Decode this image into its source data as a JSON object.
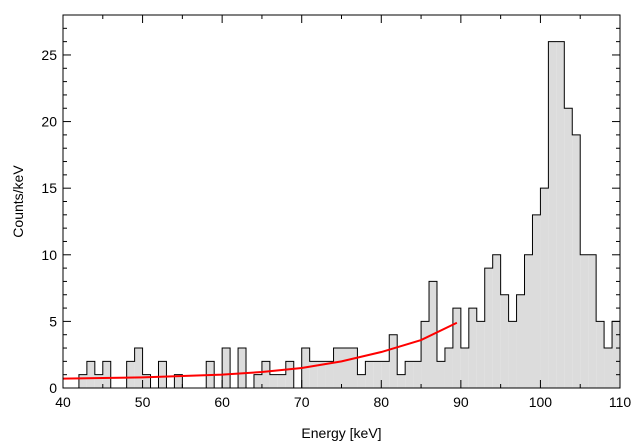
{
  "chart_data": {
    "type": "histogram",
    "xlabel": "Energy [keV]",
    "ylabel": "Counts/keV",
    "xlim": [
      40,
      110
    ],
    "ylim": [
      0,
      28
    ],
    "xticks": [
      40,
      50,
      60,
      70,
      80,
      90,
      100,
      110
    ],
    "yticks": [
      0,
      5,
      10,
      15,
      20,
      25
    ],
    "bin_width": 1,
    "bins": [
      [
        40,
        0
      ],
      [
        41,
        0
      ],
      [
        42,
        1
      ],
      [
        43,
        2
      ],
      [
        44,
        1
      ],
      [
        45,
        2
      ],
      [
        46,
        0
      ],
      [
        47,
        0
      ],
      [
        48,
        2
      ],
      [
        49,
        3
      ],
      [
        50,
        1
      ],
      [
        51,
        0
      ],
      [
        52,
        2
      ],
      [
        53,
        0
      ],
      [
        54,
        1
      ],
      [
        55,
        0
      ],
      [
        56,
        0
      ],
      [
        57,
        0
      ],
      [
        58,
        2
      ],
      [
        59,
        0
      ],
      [
        60,
        3
      ],
      [
        61,
        0
      ],
      [
        62,
        3
      ],
      [
        63,
        0
      ],
      [
        64,
        1
      ],
      [
        65,
        2
      ],
      [
        66,
        1
      ],
      [
        67,
        1
      ],
      [
        68,
        2
      ],
      [
        69,
        0
      ],
      [
        70,
        3
      ],
      [
        71,
        2
      ],
      [
        72,
        2
      ],
      [
        73,
        2
      ],
      [
        74,
        3
      ],
      [
        75,
        3
      ],
      [
        76,
        3
      ],
      [
        77,
        1
      ],
      [
        78,
        2
      ],
      [
        79,
        2
      ],
      [
        80,
        2
      ],
      [
        81,
        4
      ],
      [
        82,
        1
      ],
      [
        83,
        2
      ],
      [
        84,
        2
      ],
      [
        85,
        5
      ],
      [
        86,
        8
      ],
      [
        87,
        2
      ],
      [
        88,
        3
      ],
      [
        89,
        6
      ],
      [
        90,
        3
      ],
      [
        91,
        6
      ],
      [
        92,
        5
      ],
      [
        93,
        9
      ],
      [
        94,
        10
      ],
      [
        95,
        7
      ],
      [
        96,
        5
      ],
      [
        97,
        7
      ],
      [
        98,
        10
      ],
      [
        99,
        13
      ],
      [
        100,
        15
      ],
      [
        101,
        26
      ],
      [
        102,
        26
      ],
      [
        103,
        21
      ],
      [
        104,
        19
      ],
      [
        105,
        10
      ],
      [
        106,
        10
      ],
      [
        107,
        5
      ],
      [
        108,
        3
      ],
      [
        109,
        5
      ]
    ],
    "fit_curve": {
      "color": "#ff0000",
      "x": [
        40,
        45,
        50,
        55,
        60,
        65,
        70,
        75,
        80,
        85,
        89.5
      ],
      "y": [
        0.7,
        0.75,
        0.8,
        0.9,
        1.0,
        1.2,
        1.5,
        2.0,
        2.7,
        3.6,
        4.9
      ]
    }
  }
}
